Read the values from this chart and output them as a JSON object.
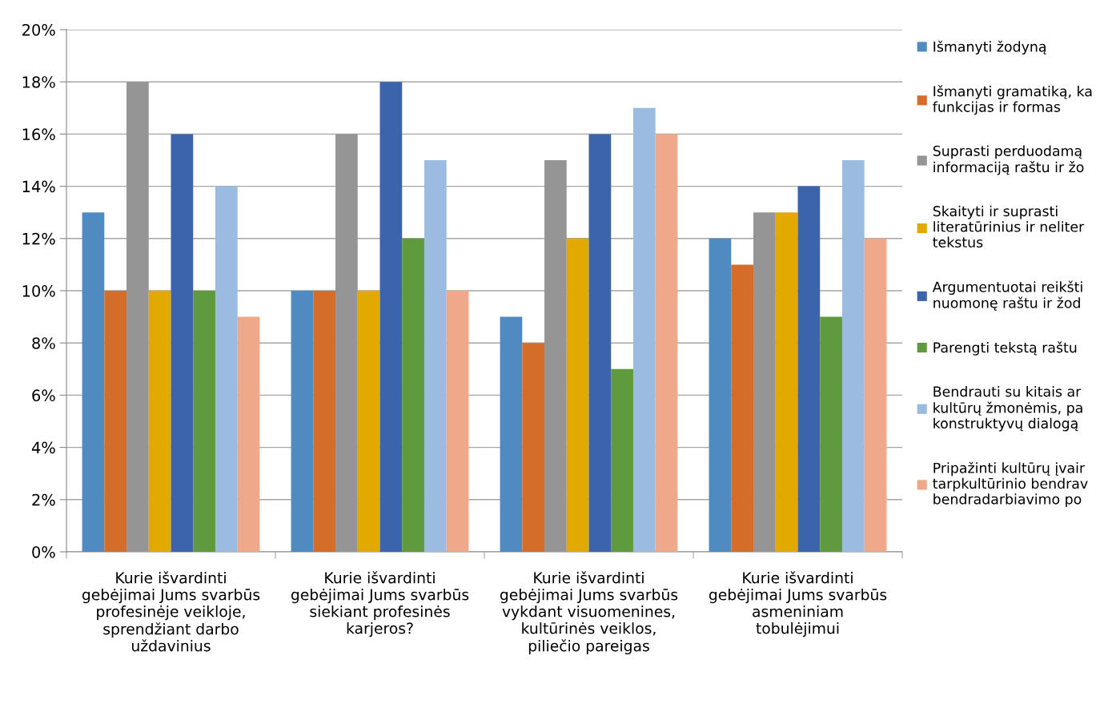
{
  "chart_data": {
    "type": "bar",
    "categories": [
      "Kurie išvardinti\ngebėjimai Jums svarbūs\nprofesinėje veikloje,\nsprendžiant darbo\nuždavinius",
      "Kurie išvardinti\ngebėjimai Jums svarbūs\nsiekiant profesinės\nkarjeros?",
      "Kurie išvardinti\ngebėjimai Jums svarbūs\nvykdant visuomenines,\nkultūrinės veiklos,\npiliečio pareigas",
      "Kurie išvardinti\ngebėjimai Jums svarbūs\nasmeniniam\ntobulėjimui"
    ],
    "series": [
      {
        "name": "Išmanyti žodyną",
        "color": "#4f8bc0",
        "values": [
          13,
          10,
          9,
          12
        ]
      },
      {
        "name": "Išmanyti gramatiką, ka\nfunkcijas ir formas",
        "color": "#d46c2a",
        "values": [
          10,
          10,
          8,
          11
        ]
      },
      {
        "name": "Suprasti perduodamą\ninformaciją raštu ir žo",
        "color": "#959595",
        "values": [
          18,
          16,
          15,
          13
        ]
      },
      {
        "name": "Skaityti ir suprasti\nliteratūrinius ir neliter\ntekstus",
        "color": "#e2a900",
        "values": [
          10,
          10,
          12,
          13
        ]
      },
      {
        "name": "Argumentuotai reikšti\nnuomonę raštu ir žod",
        "color": "#3c64ad",
        "values": [
          16,
          18,
          16,
          14
        ]
      },
      {
        "name": "Parengti tekstą raštu",
        "color": "#5f9a3e",
        "values": [
          10,
          12,
          7,
          9
        ]
      },
      {
        "name": "Bendrauti su kitais ar\nkultūrų žmonėmis, pa\nkonstruktyvų dialogą",
        "color": "#9bbbe0",
        "values": [
          14,
          15,
          17,
          15
        ]
      },
      {
        "name": "Pripažinti kultūrų įvair\ntarpkultūrinio bendrav\nbendradarbiavimo po",
        "color": "#f0a88a",
        "values": [
          9,
          10,
          16,
          12
        ]
      }
    ],
    "ylim": [
      0,
      20
    ],
    "yticks": [
      {
        "value": 0,
        "label": "0%"
      },
      {
        "value": 2,
        "label": "2%"
      },
      {
        "value": 4,
        "label": "4%"
      },
      {
        "value": 6,
        "label": "6%"
      },
      {
        "value": 8,
        "label": "8%"
      },
      {
        "value": 10,
        "label": "10%"
      },
      {
        "value": 12,
        "label": "12%"
      },
      {
        "value": 14,
        "label": "14%"
      },
      {
        "value": 16,
        "label": "16%"
      },
      {
        "value": 18,
        "label": "18%"
      },
      {
        "value": 20,
        "label": "20%"
      }
    ],
    "grid": "y",
    "legend": "right"
  }
}
